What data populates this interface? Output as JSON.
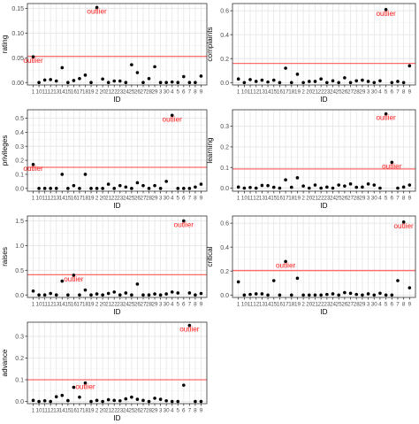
{
  "colors": {
    "panel_border": "#333333",
    "grid_major": "#e6e6e6",
    "grid_minor": "#f2f2f2",
    "point": "#000000",
    "threshold_line": "#ff6b6b",
    "outlier_label": "#ff1a1a",
    "axis_text": "#4d4d4d",
    "axis_title": "#000000"
  },
  "x_tick_labels": [
    "1",
    "10",
    "11",
    "12",
    "13",
    "14",
    "15",
    "16",
    "17",
    "18",
    "19",
    "2",
    "20",
    "21",
    "22",
    "23",
    "24",
    "25",
    "26",
    "27",
    "28",
    "29",
    "3",
    "30",
    "4",
    "5",
    "6",
    "7",
    "8",
    "9"
  ],
  "chart_data": [
    {
      "type": "scatter",
      "xlabel": "ID",
      "ylabel": "rating",
      "ylim": [
        -0.005,
        0.16
      ],
      "yticks": [
        "0.00",
        "0.05",
        "0.10",
        "0.15"
      ],
      "ytick_values": [
        0,
        0.05,
        0.1,
        0.15
      ],
      "threshold": 0.053,
      "values": [
        0.052,
        0.0,
        0.005,
        0.006,
        0.003,
        0.03,
        0.0,
        0.004,
        0.008,
        0.015,
        0.0,
        0.152,
        0.007,
        0.0,
        0.003,
        0.003,
        0.0,
        0.036,
        0.02,
        0.0,
        0.008,
        0.032,
        0.0,
        0.0,
        0.001,
        0.0,
        0.012,
        0.0,
        0.0,
        0.013
      ],
      "outlier_labels": [
        {
          "index": 0,
          "text": "outlier"
        },
        {
          "index": 11,
          "text": "outlier"
        }
      ]
    },
    {
      "type": "scatter",
      "xlabel": "ID",
      "ylabel": "complaints",
      "ylim": [
        -0.02,
        0.66
      ],
      "yticks": [
        "0.0",
        "0.2",
        "0.4",
        "0.6"
      ],
      "ytick_values": [
        0,
        0.2,
        0.4,
        0.6
      ],
      "threshold": 0.16,
      "values": [
        0.03,
        0.0,
        0.025,
        0.01,
        0.02,
        0.005,
        0.02,
        0.0,
        0.12,
        0.0,
        0.07,
        0.0,
        0.01,
        0.01,
        0.03,
        0.0,
        0.015,
        0.0,
        0.04,
        0.0,
        0.015,
        0.02,
        0.01,
        0.0,
        0.015,
        0.61,
        0.0,
        0.01,
        0.0,
        0.14
      ],
      "outlier_labels": [
        {
          "index": 25,
          "text": "outlier"
        }
      ]
    },
    {
      "type": "scatter",
      "xlabel": "ID",
      "ylabel": "privileges",
      "ylim": [
        -0.02,
        0.56
      ],
      "yticks": [
        "0.0",
        "0.1",
        "0.2",
        "0.3",
        "0.4",
        "0.5"
      ],
      "ytick_values": [
        0,
        0.1,
        0.2,
        0.3,
        0.4,
        0.5
      ],
      "threshold": 0.15,
      "values": [
        0.17,
        0.0,
        0.0,
        0.0,
        0.0,
        0.1,
        0.0,
        0.02,
        0.0,
        0.1,
        0.0,
        0.0,
        0.0,
        0.03,
        0.0,
        0.02,
        0.01,
        0.0,
        0.04,
        0.02,
        0.0,
        0.02,
        0.0,
        0.05,
        0.52,
        0.0,
        0.0,
        0.0,
        0.01,
        0.03
      ],
      "outlier_labels": [
        {
          "index": 0,
          "text": "outlier"
        },
        {
          "index": 24,
          "text": "outlier"
        }
      ]
    },
    {
      "type": "scatter",
      "xlabel": "ID",
      "ylabel": "learning",
      "ylim": [
        -0.015,
        0.38
      ],
      "yticks": [
        "0.0",
        "0.1",
        "0.2",
        "0.3"
      ],
      "ytick_values": [
        0,
        0.1,
        0.2,
        0.3
      ],
      "threshold": 0.093,
      "values": [
        0.005,
        0.0,
        0.003,
        0.0,
        0.013,
        0.012,
        0.004,
        0.0,
        0.04,
        0.004,
        0.05,
        0.01,
        0.0,
        0.015,
        0.0,
        0.005,
        0.0,
        0.015,
        0.01,
        0.02,
        0.004,
        0.005,
        0.02,
        0.015,
        0.0,
        0.36,
        0.125,
        0.0,
        0.005,
        0.015
      ],
      "outlier_labels": [
        {
          "index": 25,
          "text": "outlier"
        },
        {
          "index": 26,
          "text": "outlier"
        }
      ]
    },
    {
      "type": "scatter",
      "xlabel": "ID",
      "ylabel": "raises",
      "ylim": [
        -0.05,
        1.6
      ],
      "yticks": [
        "0.0",
        "0.5",
        "1.0",
        "1.5"
      ],
      "ytick_values": [
        0,
        0.5,
        1.0,
        1.5
      ],
      "threshold": 0.41,
      "values": [
        0.08,
        0.0,
        0.0,
        0.03,
        0.0,
        0.28,
        0.0,
        0.4,
        0.0,
        0.1,
        0.0,
        0.02,
        0.0,
        0.03,
        0.06,
        0.0,
        0.04,
        0.0,
        0.22,
        0.0,
        0.0,
        0.02,
        0.0,
        0.02,
        0.06,
        0.04,
        1.5,
        0.04,
        0.0,
        0.03
      ],
      "outlier_labels": [
        {
          "index": 7,
          "text": "outlier"
        },
        {
          "index": 26,
          "text": "outlier"
        }
      ]
    },
    {
      "type": "scatter",
      "xlabel": "ID",
      "ylabel": "critical",
      "ylim": [
        -0.02,
        0.66
      ],
      "yticks": [
        "0.0",
        "0.2",
        "0.4",
        "0.6"
      ],
      "ytick_values": [
        0,
        0.2,
        0.4,
        0.6
      ],
      "threshold": 0.205,
      "values": [
        0.11,
        0.0,
        0.005,
        0.01,
        0.01,
        0.0,
        0.12,
        0.0,
        0.28,
        0.0,
        0.14,
        0.0,
        0.0,
        0.0,
        0.0,
        0.005,
        0.01,
        0.0,
        0.02,
        0.015,
        0.005,
        0.0,
        0.01,
        0.0,
        0.015,
        0.0,
        0.0,
        0.12,
        0.61,
        0.06
      ],
      "outlier_labels": [
        {
          "index": 8,
          "text": "outlier"
        },
        {
          "index": 28,
          "text": "outlier"
        }
      ]
    },
    {
      "type": "scatter",
      "xlabel": "ID",
      "ylabel": "advance",
      "ylim": [
        -0.01,
        0.365
      ],
      "yticks": [
        "0.0",
        "0.1",
        "0.2",
        "0.3"
      ],
      "ytick_values": [
        0,
        0.1,
        0.2,
        0.3
      ],
      "threshold": 0.1,
      "values": [
        0.005,
        0.0,
        0.003,
        0.0,
        0.022,
        0.028,
        0.004,
        0.065,
        0.02,
        0.085,
        0.0,
        0.005,
        0.0,
        0.008,
        0.005,
        0.003,
        0.012,
        0.02,
        0.01,
        0.005,
        0.0,
        0.015,
        0.01,
        0.003,
        0.0,
        0.0,
        0.075,
        0.35,
        0.0,
        0.0
      ],
      "outlier_labels": [
        {
          "index": 9,
          "text": "outlier"
        },
        {
          "index": 27,
          "text": "outlier"
        }
      ]
    }
  ]
}
